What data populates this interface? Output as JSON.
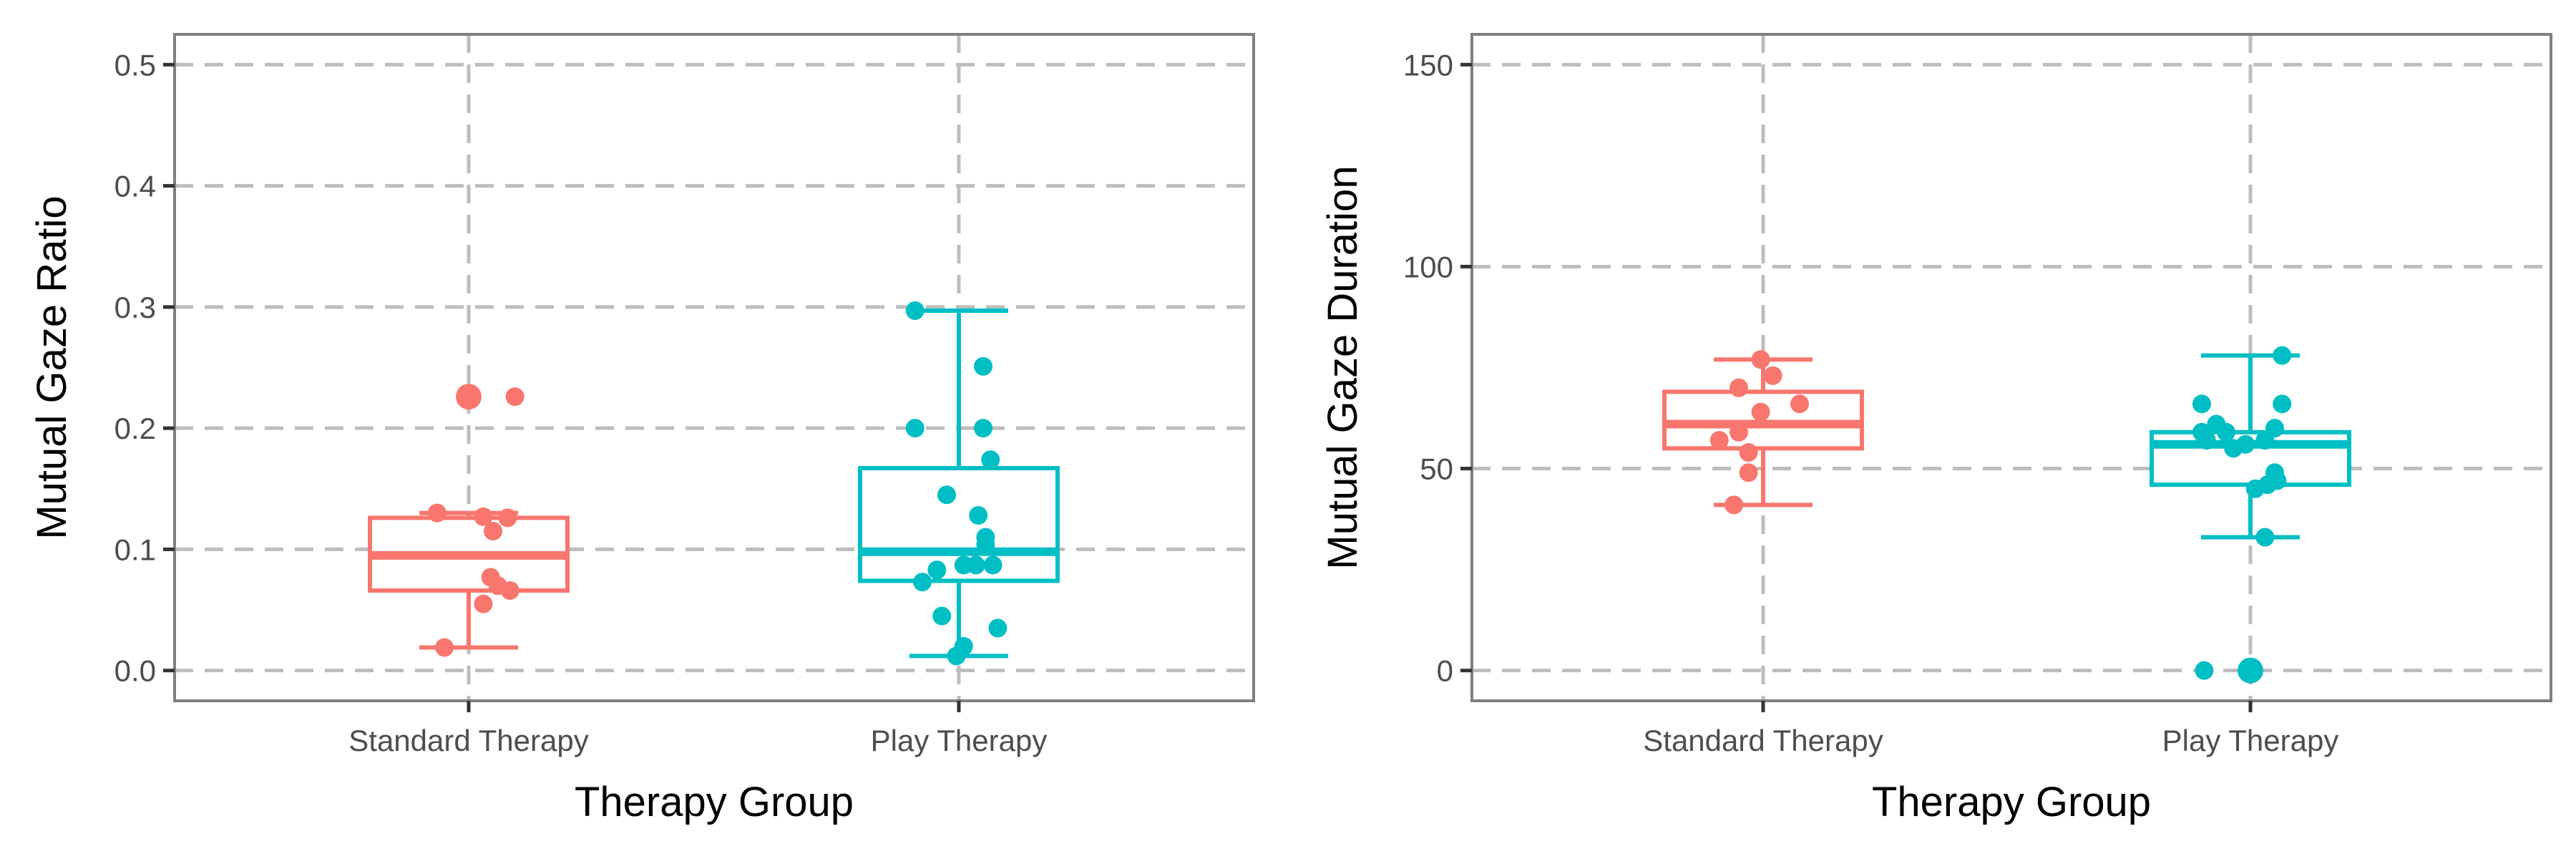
{
  "chart_data": [
    {
      "type": "boxplot",
      "xlabel": "Therapy Group",
      "ylabel": "Mutual Gaze Ratio",
      "categories": [
        "Standard Therapy",
        "Play Therapy"
      ],
      "ylim": [
        -0.025,
        0.525
      ],
      "yticks": [
        0.0,
        0.1,
        0.2,
        0.3,
        0.4,
        0.5
      ],
      "ytick_labels": [
        "0.0",
        "0.1",
        "0.2",
        "0.3",
        "0.4",
        "0.5"
      ],
      "grid": true,
      "boxes": [
        {
          "category": "Standard Therapy",
          "color": "#F8766D",
          "min": 0.019,
          "q1": 0.066,
          "median": 0.095,
          "q3": 0.126,
          "max": 0.13,
          "outliers": [
            0.226
          ]
        },
        {
          "category": "Play Therapy",
          "color": "#00BFC4",
          "min": 0.012,
          "q1": 0.074,
          "median": 0.098,
          "q3": 0.167,
          "max": 0.297,
          "outliers": []
        }
      ],
      "points": [
        {
          "category": "Standard Therapy",
          "jitter": -0.13,
          "y": 0.13
        },
        {
          "category": "Standard Therapy",
          "jitter": 0.06,
          "y": 0.127
        },
        {
          "category": "Standard Therapy",
          "jitter": 0.16,
          "y": 0.126
        },
        {
          "category": "Standard Therapy",
          "jitter": 0.1,
          "y": 0.115
        },
        {
          "category": "Standard Therapy",
          "jitter": 0.09,
          "y": 0.077
        },
        {
          "category": "Standard Therapy",
          "jitter": 0.12,
          "y": 0.07
        },
        {
          "category": "Standard Therapy",
          "jitter": 0.17,
          "y": 0.066
        },
        {
          "category": "Standard Therapy",
          "jitter": 0.06,
          "y": 0.055
        },
        {
          "category": "Standard Therapy",
          "jitter": -0.1,
          "y": 0.019
        },
        {
          "category": "Standard Therapy",
          "jitter": 0.0,
          "y": 0.226
        },
        {
          "category": "Standard Therapy",
          "jitter": 0.19,
          "y": 0.226
        },
        {
          "category": "Play Therapy",
          "jitter": -0.18,
          "y": 0.297
        },
        {
          "category": "Play Therapy",
          "jitter": 0.1,
          "y": 0.251
        },
        {
          "category": "Play Therapy",
          "jitter": -0.18,
          "y": 0.2
        },
        {
          "category": "Play Therapy",
          "jitter": 0.1,
          "y": 0.2
        },
        {
          "category": "Play Therapy",
          "jitter": 0.13,
          "y": 0.174
        },
        {
          "category": "Play Therapy",
          "jitter": -0.05,
          "y": 0.145
        },
        {
          "category": "Play Therapy",
          "jitter": 0.08,
          "y": 0.128
        },
        {
          "category": "Play Therapy",
          "jitter": 0.11,
          "y": 0.11
        },
        {
          "category": "Play Therapy",
          "jitter": 0.11,
          "y": 0.104
        },
        {
          "category": "Play Therapy",
          "jitter": 0.02,
          "y": 0.087
        },
        {
          "category": "Play Therapy",
          "jitter": 0.07,
          "y": 0.087
        },
        {
          "category": "Play Therapy",
          "jitter": 0.14,
          "y": 0.087
        },
        {
          "category": "Play Therapy",
          "jitter": -0.09,
          "y": 0.083
        },
        {
          "category": "Play Therapy",
          "jitter": -0.15,
          "y": 0.073
        },
        {
          "category": "Play Therapy",
          "jitter": -0.07,
          "y": 0.045
        },
        {
          "category": "Play Therapy",
          "jitter": 0.16,
          "y": 0.035
        },
        {
          "category": "Play Therapy",
          "jitter": 0.02,
          "y": 0.02
        },
        {
          "category": "Play Therapy",
          "jitter": -0.01,
          "y": 0.012
        }
      ]
    },
    {
      "type": "boxplot",
      "xlabel": "Therapy Group",
      "ylabel": "Mutual Gaze Duration",
      "categories": [
        "Standard Therapy",
        "Play Therapy"
      ],
      "ylim": [
        -7.5,
        157.5
      ],
      "yticks": [
        0,
        50,
        100,
        150
      ],
      "ytick_labels": [
        "0",
        "50",
        "100",
        "150"
      ],
      "grid": true,
      "boxes": [
        {
          "category": "Standard Therapy",
          "color": "#F8766D",
          "min": 41,
          "q1": 55,
          "median": 61,
          "q3": 69,
          "max": 77,
          "outliers": []
        },
        {
          "category": "Play Therapy",
          "color": "#00BFC4",
          "min": 33,
          "q1": 46,
          "median": 56,
          "q3": 59,
          "max": 78,
          "outliers": [
            0
          ]
        }
      ],
      "points": [
        {
          "category": "Standard Therapy",
          "jitter": -0.01,
          "y": 77
        },
        {
          "category": "Standard Therapy",
          "jitter": 0.04,
          "y": 73
        },
        {
          "category": "Standard Therapy",
          "jitter": -0.1,
          "y": 70
        },
        {
          "category": "Standard Therapy",
          "jitter": 0.15,
          "y": 66
        },
        {
          "category": "Standard Therapy",
          "jitter": -0.01,
          "y": 64
        },
        {
          "category": "Standard Therapy",
          "jitter": -0.1,
          "y": 59
        },
        {
          "category": "Standard Therapy",
          "jitter": -0.18,
          "y": 57
        },
        {
          "category": "Standard Therapy",
          "jitter": -0.06,
          "y": 54
        },
        {
          "category": "Standard Therapy",
          "jitter": -0.06,
          "y": 49
        },
        {
          "category": "Standard Therapy",
          "jitter": -0.12,
          "y": 41
        },
        {
          "category": "Play Therapy",
          "jitter": 0.13,
          "y": 78
        },
        {
          "category": "Play Therapy",
          "jitter": -0.2,
          "y": 66
        },
        {
          "category": "Play Therapy",
          "jitter": 0.13,
          "y": 66
        },
        {
          "category": "Play Therapy",
          "jitter": -0.14,
          "y": 61
        },
        {
          "category": "Play Therapy",
          "jitter": -0.2,
          "y": 59
        },
        {
          "category": "Play Therapy",
          "jitter": -0.1,
          "y": 59
        },
        {
          "category": "Play Therapy",
          "jitter": 0.1,
          "y": 60
        },
        {
          "category": "Play Therapy",
          "jitter": -0.18,
          "y": 57
        },
        {
          "category": "Play Therapy",
          "jitter": 0.06,
          "y": 57
        },
        {
          "category": "Play Therapy",
          "jitter": -0.02,
          "y": 56
        },
        {
          "category": "Play Therapy",
          "jitter": -0.07,
          "y": 55
        },
        {
          "category": "Play Therapy",
          "jitter": 0.1,
          "y": 49
        },
        {
          "category": "Play Therapy",
          "jitter": 0.11,
          "y": 47
        },
        {
          "category": "Play Therapy",
          "jitter": 0.07,
          "y": 46
        },
        {
          "category": "Play Therapy",
          "jitter": 0.02,
          "y": 45
        },
        {
          "category": "Play Therapy",
          "jitter": 0.06,
          "y": 33
        },
        {
          "category": "Play Therapy",
          "jitter": -0.19,
          "y": 0
        },
        {
          "category": "Play Therapy",
          "jitter": 0.0,
          "y": 0
        }
      ]
    }
  ]
}
